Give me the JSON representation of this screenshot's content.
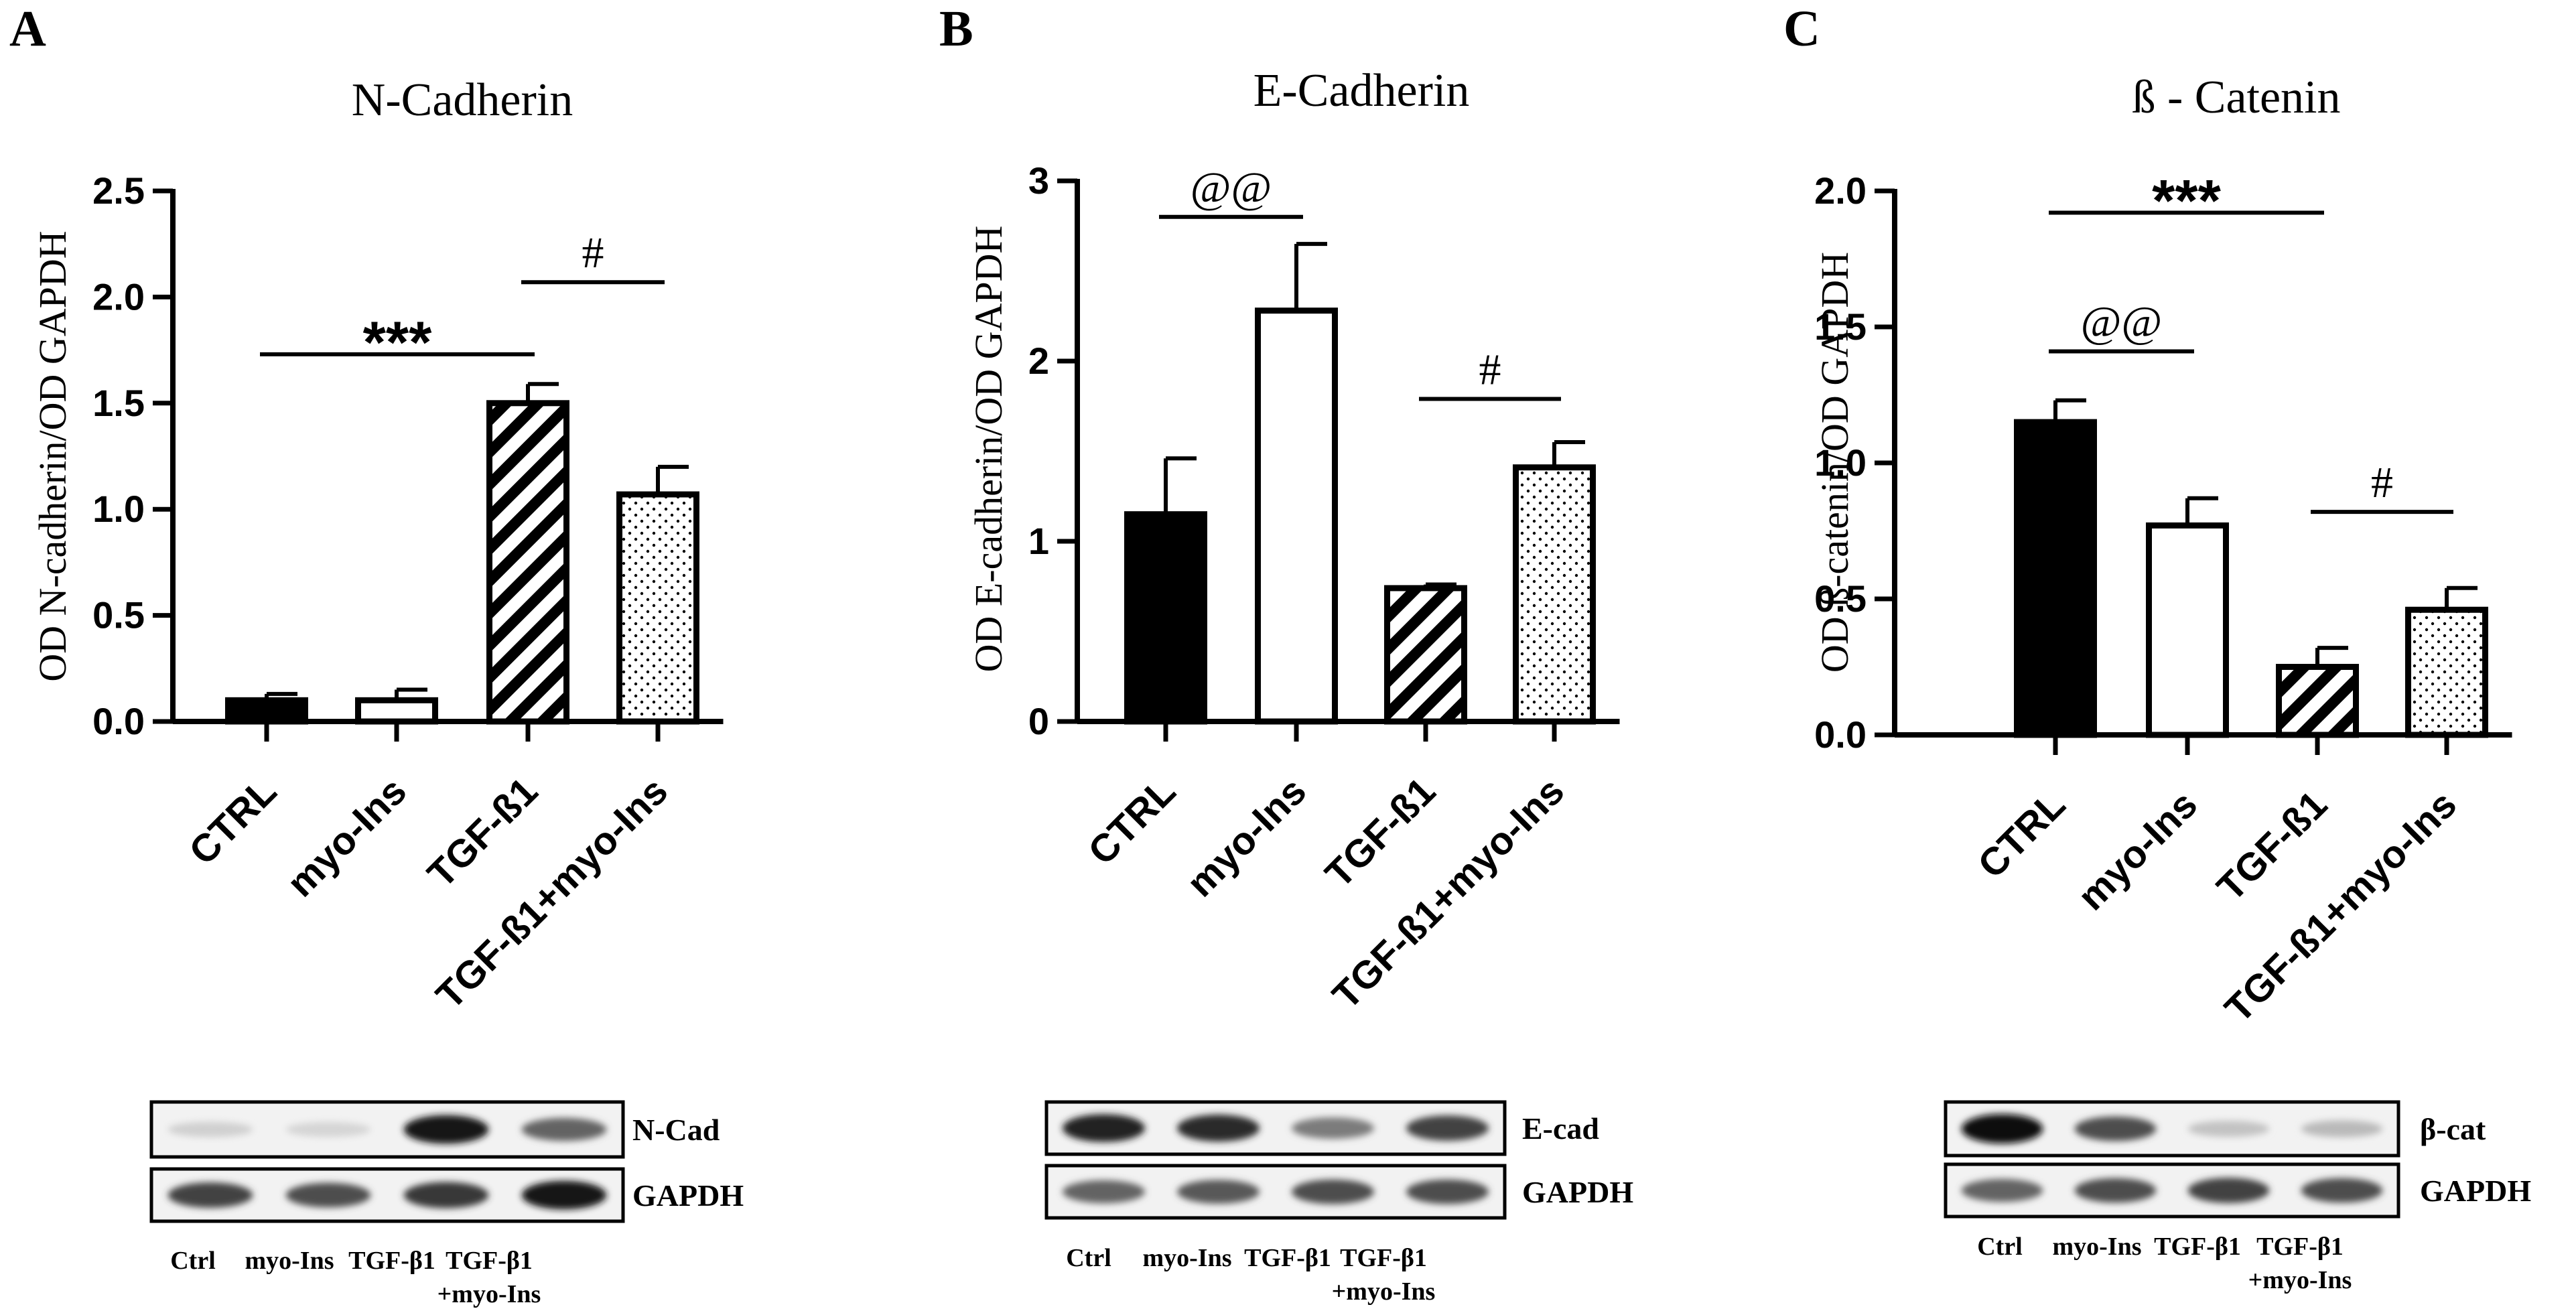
{
  "figure": {
    "panels": [
      {
        "letter": "A",
        "blot": {
          "rows": [
            {
              "label": "N-Cad",
              "band_intensity": [
                0.12,
                0.1,
                0.95,
                0.6
              ]
            },
            {
              "label": "GAPDH",
              "band_intensity": [
                0.75,
                0.7,
                0.8,
                0.95
              ]
            }
          ],
          "lanes": [
            "Ctrl",
            "myo-Ins",
            "TGF-β1",
            "TGF-β1\n+myo-Ins"
          ]
        }
      },
      {
        "letter": "B",
        "blot": {
          "rows": [
            {
              "label": "E-cad",
              "band_intensity": [
                0.9,
                0.85,
                0.5,
                0.75
              ]
            },
            {
              "label": "GAPDH",
              "band_intensity": [
                0.6,
                0.65,
                0.7,
                0.7
              ]
            }
          ],
          "lanes": [
            "Ctrl",
            "myo-Ins",
            "TGF-β1",
            "TGF-β1\n+myo-Ins"
          ]
        }
      },
      {
        "letter": "C",
        "blot": {
          "rows": [
            {
              "label": "β-cat",
              "band_intensity": [
                1.0,
                0.7,
                0.18,
                0.22
              ]
            },
            {
              "label": "GAPDH",
              "band_intensity": [
                0.6,
                0.7,
                0.75,
                0.7
              ]
            }
          ],
          "lanes": [
            "Ctrl",
            "myo-Ins",
            "TGF-β1",
            "TGF-β1\n+myo-Ins"
          ]
        }
      }
    ]
  },
  "chart_data": [
    {
      "type": "bar",
      "title": "N-Cadherin",
      "xlabel": "",
      "ylabel": "OD N-cadherin/OD GAPDH",
      "categories": [
        "CTRL",
        "myo-Ins",
        "TGF-ß1",
        "TGF-ß1+myo-Ins"
      ],
      "values": [
        0.1,
        0.1,
        1.5,
        1.07
      ],
      "errors": [
        0.03,
        0.05,
        0.09,
        0.13
      ],
      "patterns": [
        "solid",
        "open",
        "stripes",
        "dots"
      ],
      "ylim": [
        0,
        2.5
      ],
      "yticks": [
        0.0,
        0.5,
        1.0,
        1.5,
        2.0,
        2.5
      ],
      "tick_labels": [
        "0.0",
        "0.5",
        "1.0",
        "1.5",
        "2.0",
        "2.5"
      ],
      "annotations": [
        {
          "text": "***",
          "from": 0,
          "to": 2,
          "y": 1.73,
          "bold": true
        },
        {
          "text": "#",
          "from": 2,
          "to": 3,
          "y": 2.07,
          "bold": false
        }
      ]
    },
    {
      "type": "bar",
      "title": "E-Cadherin",
      "xlabel": "",
      "ylabel": "OD E-cadherin/OD GAPDH",
      "categories": [
        "CTRL",
        "myo-Ins",
        "TGF-ß1",
        "TGF-ß1+myo-Ins"
      ],
      "values": [
        1.15,
        2.28,
        0.74,
        1.41
      ],
      "errors": [
        0.31,
        0.37,
        0.02,
        0.14
      ],
      "patterns": [
        "solid",
        "open",
        "stripes",
        "dots"
      ],
      "ylim": [
        0,
        3
      ],
      "yticks": [
        0,
        1,
        2,
        3
      ],
      "tick_labels": [
        "0",
        "1",
        "2",
        "3"
      ],
      "annotations": [
        {
          "text": "@@",
          "from": 0,
          "to": 1,
          "y": 2.8,
          "bold": false
        },
        {
          "text": "#",
          "from": 2,
          "to": 3,
          "y": 1.79,
          "bold": false
        }
      ]
    },
    {
      "type": "bar",
      "title": "ß - Catenin",
      "xlabel": "",
      "ylabel": "OD ß-catenin/OD GAPDH",
      "categories": [
        "CTRL",
        "myo-Ins",
        "TGF-ß1",
        "TGF-ß1+myo-Ins"
      ],
      "values": [
        1.15,
        0.77,
        0.25,
        0.46
      ],
      "errors": [
        0.08,
        0.1,
        0.07,
        0.08
      ],
      "patterns": [
        "solid",
        "open",
        "stripes",
        "dots"
      ],
      "ylim": [
        0,
        2.0
      ],
      "yticks": [
        0.0,
        0.5,
        1.0,
        1.5,
        2.0
      ],
      "tick_labels": [
        "0.0",
        "0.5",
        "1.0",
        "1.5",
        "2.0"
      ],
      "annotations": [
        {
          "text": "***",
          "from": 0,
          "to": 2,
          "y": 1.92,
          "bold": true
        },
        {
          "text": "@@",
          "from": 0,
          "to": 1,
          "y": 1.41,
          "bold": false
        },
        {
          "text": "#",
          "from": 2,
          "to": 3,
          "y": 0.82,
          "bold": false
        }
      ]
    }
  ]
}
